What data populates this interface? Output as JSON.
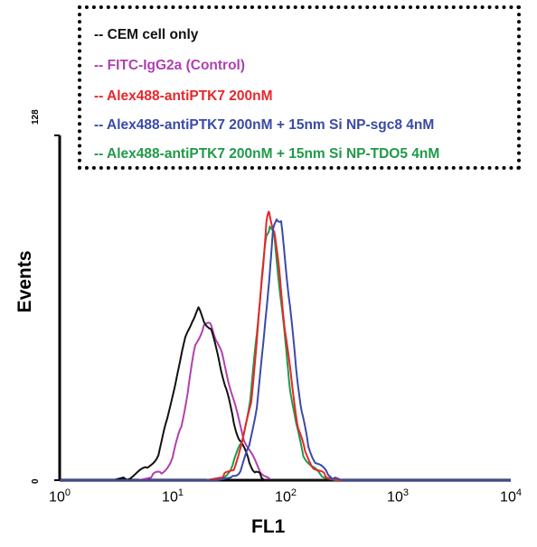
{
  "chart_data": {
    "type": "line",
    "xscale": "log",
    "xlim": [
      1,
      10000
    ],
    "ylim": [
      0,
      128
    ],
    "xlabel": "FL1",
    "ylabel": "Events",
    "xticks": [
      {
        "base": "10",
        "exp": "0"
      },
      {
        "base": "10",
        "exp": "1"
      },
      {
        "base": "10",
        "exp": "2"
      },
      {
        "base": "10",
        "exp": "3"
      },
      {
        "base": "10",
        "exp": "4"
      }
    ],
    "yticks": [
      "128",
      "0"
    ],
    "legend_position": "top",
    "series": [
      {
        "name": "-- CEM cell only",
        "color": "#111111",
        "x": [
          1,
          3,
          4.5,
          6,
          7.5,
          9,
          11,
          13,
          15,
          17,
          19,
          22,
          26,
          30,
          35,
          40,
          48,
          55,
          65,
          10000
        ],
        "y": [
          0,
          0,
          2,
          4,
          10,
          22,
          40,
          52,
          60,
          63,
          60,
          55,
          45,
          33,
          22,
          14,
          7,
          3,
          0,
          0
        ]
      },
      {
        "name": "-- FITC-IgG2a (Control)",
        "color": "#b040b0",
        "x": [
          1,
          5,
          6.5,
          8,
          10,
          12,
          14,
          16,
          19,
          22,
          25,
          28,
          32,
          37,
          43,
          50,
          60,
          75,
          10000
        ],
        "y": [
          0,
          0,
          1,
          3,
          8,
          20,
          36,
          50,
          58,
          57,
          52,
          45,
          36,
          25,
          16,
          9,
          4,
          0,
          0
        ]
      },
      {
        "name": "-- Alex488-antiPTK7 200nM",
        "color": "#e8262b",
        "x": [
          1,
          20,
          28,
          35,
          42,
          50,
          57,
          63,
          68,
          72,
          80,
          90,
          100,
          115,
          130,
          150,
          180,
          230,
          300,
          10000
        ],
        "y": [
          0,
          0,
          1,
          5,
          14,
          30,
          55,
          78,
          95,
          100,
          92,
          75,
          55,
          35,
          20,
          10,
          5,
          1,
          0,
          0
        ]
      },
      {
        "name": "-- Alex488-antiPTK7 200nM + 15nm Si NP-sgc8 4nM",
        "color": "#3a4aa8",
        "x": [
          1,
          25,
          33,
          40,
          48,
          56,
          64,
          72,
          78,
          84,
          92,
          100,
          110,
          125,
          140,
          160,
          190,
          240,
          320,
          10000
        ],
        "y": [
          0,
          0,
          1,
          4,
          12,
          28,
          50,
          75,
          92,
          98,
          95,
          82,
          64,
          42,
          25,
          13,
          6,
          2,
          0,
          0
        ]
      },
      {
        "name": "-- Alex488-antiPTK7 200nM + 15nm Si NP-TDO5 4nM",
        "color": "#1f9a48",
        "x": [
          1,
          20,
          27,
          34,
          41,
          49,
          56,
          62,
          68,
          73,
          80,
          88,
          98,
          110,
          125,
          145,
          175,
          220,
          280,
          10000
        ],
        "y": [
          0,
          0,
          1,
          5,
          14,
          30,
          54,
          76,
          90,
          95,
          90,
          74,
          55,
          35,
          20,
          10,
          4,
          1,
          0,
          0
        ]
      }
    ]
  }
}
